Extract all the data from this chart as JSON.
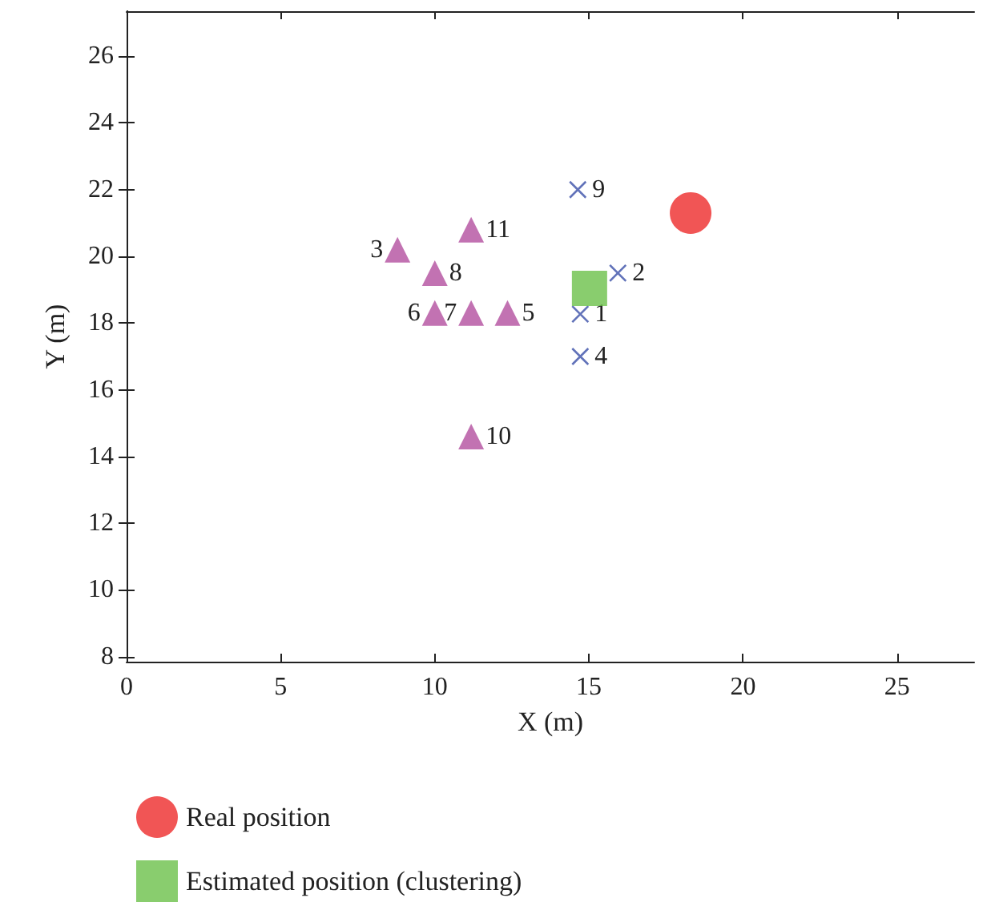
{
  "chart_data": {
    "type": "scatter",
    "xlabel": "X (m)",
    "ylabel": "Y (m)",
    "xlim": [
      0,
      27.5
    ],
    "ylim": [
      7.85,
      27.35
    ],
    "xticks": [
      0,
      5,
      10,
      15,
      20,
      25
    ],
    "yticks": [
      8,
      10,
      12,
      14,
      16,
      18,
      20,
      22,
      24,
      26
    ],
    "grid": false,
    "legend": "bottom",
    "series": [
      {
        "color": "#b34f9f",
        "marker": "triangle",
        "x": [
          12.36,
          10.0,
          11.18,
          10.0,
          8.79,
          11.18,
          11.18
        ],
        "values": [
          18.3,
          18.3,
          18.3,
          19.5,
          20.2,
          14.6,
          20.8
        ]
      },
      {
        "color": "#3a4fa8",
        "marker": "cross",
        "x": [
          14.72,
          15.94,
          14.72,
          14.64
        ],
        "values": [
          18.27,
          19.5,
          17.0,
          22.0
        ]
      },
      {
        "name": "Real position",
        "color": "#ee2a2b",
        "marker": "circle",
        "x": [
          18.3
        ],
        "values": [
          21.3
        ]
      },
      {
        "name": "Estimated position (clustering)",
        "color": "#6cc04a",
        "marker": "square",
        "x": [
          15.02
        ],
        "values": [
          19.04
        ]
      }
    ],
    "annotations": [
      {
        "text": "5",
        "x": 12.36,
        "y": 18.3
      },
      {
        "text": "6",
        "x": 10.0,
        "y": 18.3
      },
      {
        "text": "7",
        "x": 11.18,
        "y": 18.3
      },
      {
        "text": "8",
        "x": 10.0,
        "y": 19.5
      },
      {
        "text": "3",
        "x": 8.79,
        "y": 20.2
      },
      {
        "text": "10",
        "x": 11.18,
        "y": 14.6
      },
      {
        "text": "11",
        "x": 11.18,
        "y": 20.8
      },
      {
        "text": "1",
        "x": 14.72,
        "y": 18.27
      },
      {
        "text": "2",
        "x": 15.94,
        "y": 19.5
      },
      {
        "text": "4",
        "x": 14.72,
        "y": 17.0
      },
      {
        "text": "9",
        "x": 14.64,
        "y": 22.0
      }
    ]
  }
}
